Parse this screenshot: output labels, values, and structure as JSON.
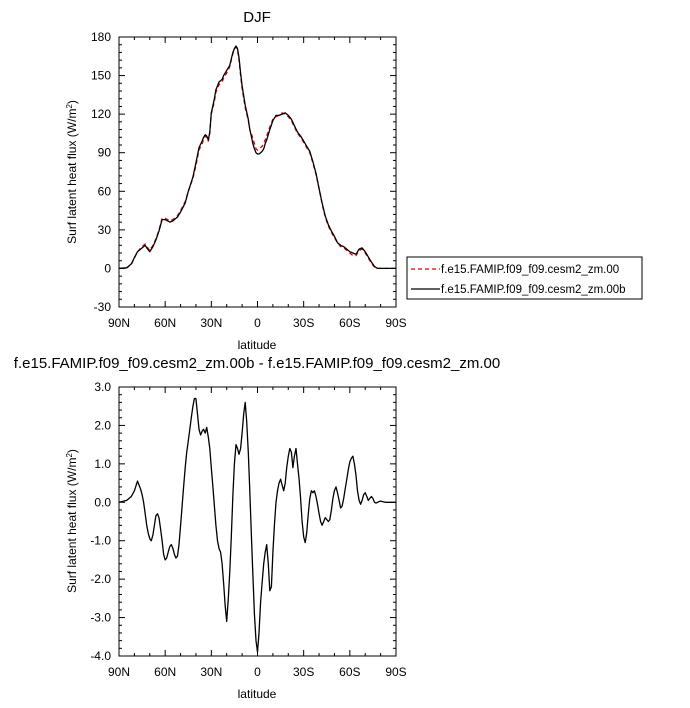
{
  "chart_data": [
    {
      "type": "line",
      "title": "DJF",
      "xlabel": "latitude",
      "ylabel_main": "Surf latent heat flux (W/m",
      "ylabel_sup": "2",
      "ylabel_end": ")",
      "xlim": [
        90,
        -90
      ],
      "ylim": [
        -30,
        180
      ],
      "x_ticks": [
        {
          "value": 90,
          "label": "90N"
        },
        {
          "value": 60,
          "label": "60N"
        },
        {
          "value": 30,
          "label": "30N"
        },
        {
          "value": 0,
          "label": "0"
        },
        {
          "value": -30,
          "label": "30S"
        },
        {
          "value": -60,
          "label": "60S"
        },
        {
          "value": -90,
          "label": "90S"
        }
      ],
      "y_ticks": [
        {
          "value": -30,
          "label": "-30"
        },
        {
          "value": 0,
          "label": "0"
        },
        {
          "value": 30,
          "label": "30"
        },
        {
          "value": 60,
          "label": "60"
        },
        {
          "value": 90,
          "label": "90"
        },
        {
          "value": 120,
          "label": "120"
        },
        {
          "value": 150,
          "label": "150"
        },
        {
          "value": 180,
          "label": "180"
        }
      ],
      "legend_position": "right",
      "series": [
        {
          "name": "f.e15.FAMIP.f09_f09.cesm2_zm.00",
          "color": "#dd0000",
          "dash": "dashed",
          "x": [
            90,
            85,
            82,
            80,
            78,
            75,
            73,
            72,
            70,
            68,
            66,
            64,
            62,
            60,
            57,
            55,
            52,
            50,
            47,
            45,
            42,
            40,
            38,
            36,
            35,
            34,
            33,
            32,
            31,
            30,
            28,
            27,
            26,
            25,
            23,
            22,
            20,
            18,
            17,
            16,
            15,
            14,
            13,
            12,
            11,
            10,
            8,
            6,
            5,
            4,
            3,
            2,
            1,
            0,
            -1,
            -2,
            -3,
            -4,
            -5,
            -6,
            -8,
            -10,
            -12,
            -14,
            -16,
            -18,
            -20,
            -22,
            -24,
            -26,
            -28,
            -30,
            -32,
            -34,
            -36,
            -38,
            -40,
            -42,
            -44,
            -46,
            -48,
            -50,
            -52,
            -54,
            -56,
            -58,
            -60,
            -62,
            -64,
            -66,
            -68,
            -70,
            -72,
            -74,
            -76,
            -78,
            -80,
            -82,
            -85,
            -90
          ],
          "y": [
            0,
            0.5,
            3,
            8,
            13,
            17,
            19,
            17,
            14,
            18,
            23,
            30,
            39,
            39,
            37,
            38,
            41,
            45,
            52,
            60,
            70,
            80,
            92,
            97,
            100,
            103,
            102,
            99,
            105,
            120,
            130,
            137,
            140,
            143,
            145,
            148,
            152,
            157,
            162,
            167,
            171,
            172,
            170,
            162,
            150,
            140,
            125,
            115,
            108,
            105,
            101,
            97,
            93,
            92,
            93,
            94,
            95,
            97,
            100,
            103,
            110,
            116,
            118,
            119,
            121,
            120,
            118,
            115,
            110,
            105,
            102,
            98,
            94,
            90,
            82,
            73,
            62,
            50,
            40,
            33,
            28,
            24,
            20,
            17,
            16,
            14,
            12,
            10,
            10,
            14,
            15,
            12,
            8,
            4,
            1,
            0,
            0,
            0,
            0,
            0
          ]
        },
        {
          "name": "f.e15.FAMIP.f09_f09.cesm2_zm.00b",
          "color": "#000000",
          "dash": "solid",
          "x": [
            90,
            85,
            82,
            80,
            78,
            75,
            73,
            72,
            70,
            68,
            66,
            64,
            62,
            60,
            57,
            55,
            52,
            50,
            47,
            45,
            42,
            40,
            38,
            36,
            35,
            34,
            33,
            32,
            31,
            30,
            28,
            27,
            26,
            25,
            23,
            22,
            20,
            18,
            17,
            16,
            15,
            14,
            13,
            12,
            11,
            10,
            8,
            6,
            5,
            4,
            3,
            2,
            1,
            0,
            -1,
            -2,
            -3,
            -4,
            -5,
            -6,
            -8,
            -10,
            -12,
            -14,
            -16,
            -18,
            -20,
            -22,
            -24,
            -26,
            -28,
            -30,
            -32,
            -34,
            -36,
            -38,
            -40,
            -42,
            -44,
            -46,
            -48,
            -50,
            -52,
            -54,
            -56,
            -58,
            -60,
            -62,
            -64,
            -66,
            -68,
            -70,
            -72,
            -74,
            -76,
            -78,
            -80,
            -82,
            -85,
            -90
          ],
          "y": [
            0,
            0.5,
            3.5,
            8.5,
            13,
            16,
            18,
            16,
            13,
            17,
            22,
            29,
            38,
            38,
            36,
            37,
            40,
            44,
            51,
            60,
            71,
            82,
            94,
            99,
            102,
            104,
            103,
            100,
            106,
            121,
            132,
            139,
            142,
            145,
            147,
            150,
            154,
            158,
            163,
            168,
            171,
            173,
            171,
            164,
            152,
            142,
            127,
            116,
            108,
            103,
            97,
            93,
            90,
            89,
            89,
            90,
            91,
            93,
            97,
            100,
            108,
            115,
            119,
            119,
            120,
            121,
            119,
            116,
            111,
            106,
            103,
            99,
            95,
            91,
            83,
            74,
            62,
            51,
            41,
            34,
            29,
            25,
            20,
            18,
            17,
            15,
            13,
            12,
            11,
            15,
            16,
            13,
            9,
            5,
            1.5,
            0,
            0,
            0,
            0,
            0
          ]
        }
      ]
    },
    {
      "type": "line",
      "title": "f.e15.FAMIP.f09_f09.cesm2_zm.00b - f.e15.FAMIP.f09_f09.cesm2_zm.00",
      "xlabel": "latitude",
      "ylabel_main": "Surf latent heat flux (W/m",
      "ylabel_sup": "2",
      "ylabel_end": ")",
      "xlim": [
        90,
        -90
      ],
      "ylim": [
        -4.0,
        3.0
      ],
      "x_ticks": [
        {
          "value": 90,
          "label": "90N"
        },
        {
          "value": 60,
          "label": "60N"
        },
        {
          "value": 30,
          "label": "30N"
        },
        {
          "value": 0,
          "label": "0"
        },
        {
          "value": -30,
          "label": "30S"
        },
        {
          "value": -60,
          "label": "60S"
        },
        {
          "value": -90,
          "label": "90S"
        }
      ],
      "y_ticks": [
        {
          "value": -4.0,
          "label": "-4.0"
        },
        {
          "value": -3.0,
          "label": "-3.0"
        },
        {
          "value": -2.0,
          "label": "-2.0"
        },
        {
          "value": -1.0,
          "label": "-1.0"
        },
        {
          "value": 0.0,
          "label": "0.0"
        },
        {
          "value": 1.0,
          "label": "1.0"
        },
        {
          "value": 2.0,
          "label": "2.0"
        },
        {
          "value": 3.0,
          "label": "3.0"
        }
      ],
      "series": [
        {
          "color": "#000000",
          "dash": "solid",
          "x": [
            90,
            85,
            82,
            80,
            78,
            77,
            76,
            75,
            74,
            73,
            72,
            71,
            70,
            69,
            68,
            67,
            66,
            65,
            64,
            63,
            62,
            61,
            60,
            59,
            58,
            57,
            56,
            55,
            54,
            53,
            52,
            51,
            50,
            49,
            48,
            47,
            46,
            45,
            44,
            43,
            42,
            41,
            40,
            39,
            38,
            37,
            36,
            35,
            34,
            33,
            32,
            31,
            30,
            29,
            28,
            27,
            26,
            25,
            24,
            23,
            22,
            21,
            20,
            19,
            18,
            17,
            16,
            15,
            14,
            13,
            12,
            11,
            10,
            9,
            8,
            7,
            6,
            5,
            4,
            3,
            2,
            1,
            0,
            -1,
            -2,
            -3,
            -4,
            -5,
            -6,
            -7,
            -8,
            -9,
            -10,
            -11,
            -12,
            -13,
            -14,
            -15,
            -16,
            -17,
            -18,
            -19,
            -20,
            -21,
            -22,
            -23,
            -24,
            -25,
            -26,
            -27,
            -28,
            -29,
            -30,
            -31,
            -32,
            -33,
            -34,
            -35,
            -36,
            -37,
            -38,
            -39,
            -40,
            -41,
            -42,
            -43,
            -44,
            -45,
            -46,
            -47,
            -48,
            -49,
            -50,
            -51,
            -52,
            -53,
            -54,
            -55,
            -56,
            -57,
            -58,
            -59,
            -60,
            -61,
            -62,
            -63,
            -64,
            -65,
            -66,
            -67,
            -68,
            -69,
            -70,
            -71,
            -72,
            -73,
            -74,
            -75,
            -76,
            -77,
            -78,
            -79,
            -80,
            -81,
            -82,
            -83,
            -84,
            -85,
            -86,
            -87,
            -88,
            -89,
            -90
          ],
          "y": [
            0.0,
            0.05,
            0.15,
            0.3,
            0.55,
            0.45,
            0.35,
            0.2,
            0.0,
            -0.3,
            -0.6,
            -0.8,
            -0.95,
            -1.0,
            -0.85,
            -0.6,
            -0.35,
            -0.3,
            -0.4,
            -0.7,
            -1.0,
            -1.35,
            -1.5,
            -1.45,
            -1.3,
            -1.15,
            -1.1,
            -1.2,
            -1.35,
            -1.45,
            -1.4,
            -1.1,
            -0.6,
            -0.1,
            0.4,
            0.9,
            1.3,
            1.6,
            1.9,
            2.2,
            2.5,
            2.7,
            2.7,
            2.3,
            1.9,
            1.75,
            1.85,
            1.9,
            1.8,
            1.95,
            1.7,
            1.4,
            0.9,
            0.4,
            -0.1,
            -0.6,
            -1.0,
            -1.2,
            -1.3,
            -1.6,
            -2.1,
            -2.7,
            -3.1,
            -2.5,
            -1.8,
            -0.9,
            0.2,
            1.0,
            1.5,
            1.4,
            1.25,
            1.4,
            1.8,
            2.3,
            2.6,
            2.1,
            1.3,
            0.3,
            -0.8,
            -1.9,
            -2.9,
            -3.6,
            -3.9,
            -3.4,
            -2.6,
            -2.1,
            -1.6,
            -1.3,
            -1.1,
            -1.6,
            -2.3,
            -2.2,
            -1.3,
            -0.6,
            0.0,
            0.3,
            0.5,
            0.6,
            0.45,
            0.3,
            0.5,
            0.9,
            1.2,
            1.4,
            1.3,
            0.9,
            1.2,
            1.4,
            1.0,
            0.6,
            0.1,
            -0.5,
            -0.9,
            -1.05,
            -0.8,
            -0.3,
            0.1,
            0.3,
            0.25,
            0.3,
            0.15,
            -0.05,
            -0.3,
            -0.5,
            -0.6,
            -0.5,
            -0.4,
            -0.45,
            -0.5,
            -0.45,
            -0.2,
            0.1,
            0.3,
            0.4,
            0.25,
            0.05,
            -0.15,
            -0.1,
            0.1,
            0.35,
            0.6,
            0.85,
            1.05,
            1.15,
            1.2,
            1.0,
            0.7,
            0.3,
            0.05,
            -0.05,
            0.05,
            0.2,
            0.25,
            0.15,
            0.05,
            0.1,
            0.15,
            0.1,
            0.0,
            -0.02,
            0.0,
            0.02,
            0.03,
            0.02,
            0.01,
            0.0,
            0.0,
            0.0,
            0.0,
            0.0,
            0.0,
            0.0,
            0.0
          ]
        }
      ]
    }
  ]
}
